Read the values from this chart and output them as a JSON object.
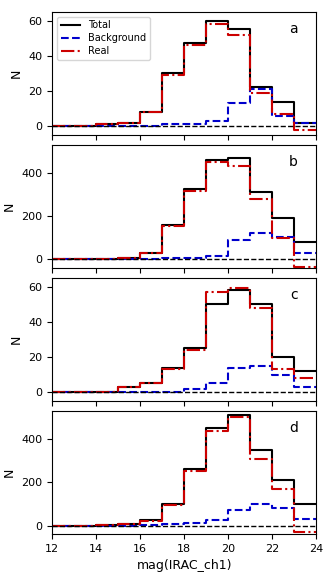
{
  "xlabel": "mag(IRAC_ch1)",
  "ylabel": "N",
  "xlim": [
    12,
    24
  ],
  "bin_edges": [
    12,
    13,
    14,
    15,
    16,
    17,
    18,
    19,
    20,
    21,
    22,
    23,
    24
  ],
  "panels": [
    {
      "label": "a",
      "ylim": [
        -5,
        65
      ],
      "yticks": [
        0,
        20,
        40,
        60
      ],
      "total": [
        0,
        0,
        1,
        2,
        8,
        30,
        47,
        60,
        55,
        22,
        14,
        2
      ],
      "background": [
        0,
        0,
        0,
        0,
        0,
        1,
        1,
        3,
        13,
        21,
        6,
        2
      ],
      "real": [
        0,
        0,
        1,
        2,
        8,
        29,
        46,
        58,
        52,
        19,
        7,
        -2
      ]
    },
    {
      "label": "b",
      "ylim": [
        -40,
        530
      ],
      "yticks": [
        0,
        200,
        400
      ],
      "total": [
        0,
        0,
        2,
        5,
        30,
        160,
        325,
        460,
        470,
        310,
        190,
        80
      ],
      "background": [
        0,
        0,
        0,
        0,
        2,
        5,
        8,
        15,
        90,
        120,
        105,
        30
      ],
      "real": [
        0,
        0,
        2,
        5,
        28,
        155,
        317,
        450,
        430,
        280,
        100,
        -35
      ]
    },
    {
      "label": "c",
      "ylim": [
        -5,
        65
      ],
      "yticks": [
        0,
        20,
        40,
        60
      ],
      "total": [
        0,
        0,
        0,
        3,
        5,
        14,
        25,
        50,
        58,
        50,
        20,
        12
      ],
      "background": [
        0,
        0,
        0,
        0,
        0,
        0,
        2,
        5,
        14,
        15,
        10,
        3
      ],
      "real": [
        0,
        0,
        0,
        3,
        5,
        13,
        24,
        57,
        59,
        48,
        13,
        8
      ]
    },
    {
      "label": "d",
      "ylim": [
        -40,
        530
      ],
      "yticks": [
        0,
        200,
        400
      ],
      "total": [
        0,
        0,
        2,
        8,
        25,
        100,
        260,
        450,
        510,
        350,
        210,
        100
      ],
      "background": [
        0,
        0,
        0,
        0,
        2,
        5,
        10,
        25,
        70,
        100,
        80,
        30
      ],
      "real": [
        0,
        0,
        2,
        8,
        23,
        95,
        250,
        435,
        500,
        310,
        170,
        -30
      ]
    }
  ],
  "total_color": "#000000",
  "background_color": "#0000cc",
  "real_color": "#cc0000",
  "total_lw": 1.5,
  "background_lw": 1.5,
  "real_lw": 1.5
}
